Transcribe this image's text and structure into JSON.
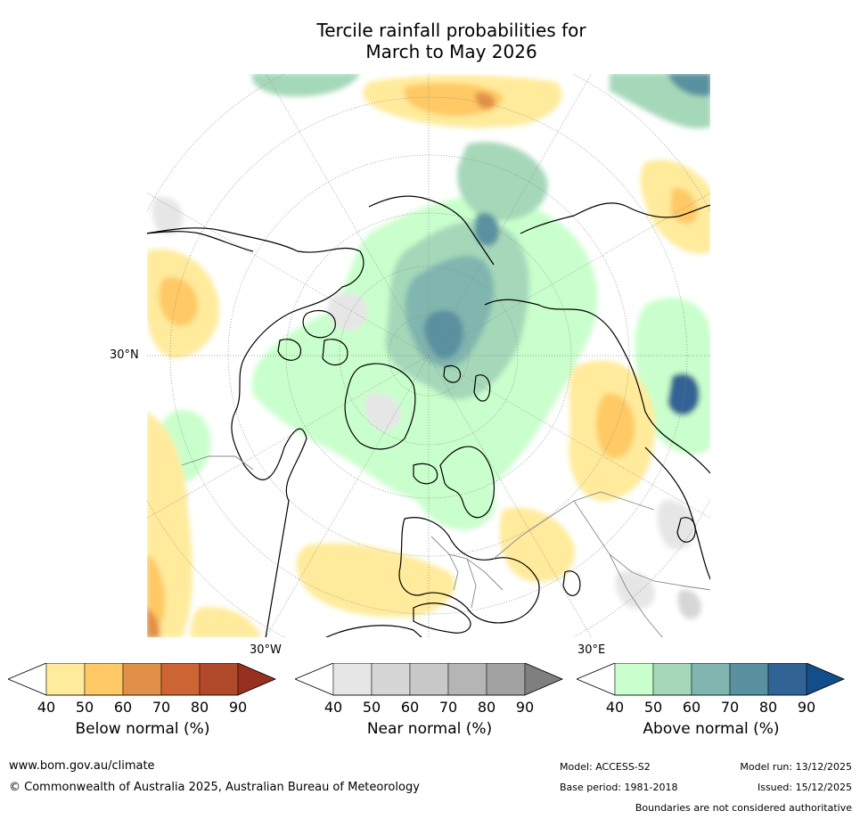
{
  "header": {
    "title_line1": "Tercile rainfall probabilities for",
    "title_line2": "March to May 2026"
  },
  "map": {
    "projection": "north-polar-stereographic",
    "lat_label": "30°N",
    "lon_label_west": "30°W",
    "lon_label_east": "30°E",
    "land_outline_color": "#000000",
    "border_color": "#888888",
    "graticule_color": "#888888"
  },
  "colorbars": [
    {
      "name": "below",
      "label": "Below normal (%)",
      "ticks": [
        "40",
        "50",
        "60",
        "70",
        "80",
        "90"
      ],
      "colors": [
        "#ffffff",
        "#ffeb9b",
        "#ffc965",
        "#e19147",
        "#cc6434",
        "#b1492b",
        "#983020"
      ]
    },
    {
      "name": "near",
      "label": "Near normal (%)",
      "ticks": [
        "40",
        "50",
        "60",
        "70",
        "80",
        "90"
      ],
      "colors": [
        "#ffffff",
        "#e6e6e6",
        "#d6d6d6",
        "#c8c8c8",
        "#b5b5b5",
        "#a2a2a2",
        "#7f7f7f"
      ]
    },
    {
      "name": "above",
      "label": "Above normal (%)",
      "ticks": [
        "40",
        "50",
        "60",
        "70",
        "80",
        "90"
      ],
      "colors": [
        "#ffffff",
        "#c9ffcc",
        "#a5d8b9",
        "#80b6af",
        "#5a91a0",
        "#316494",
        "#124e89"
      ]
    }
  ],
  "footer": {
    "website": "www.bom.gov.au/climate",
    "copyright": "© Commonwealth of Australia 2025, Australian Bureau of Meteorology",
    "model": "Model: ACCESS-S2",
    "base_period": "Base period: 1981-2018",
    "model_run": "Model run: 13/12/2025",
    "issued": "Issued: 15/12/2025",
    "disclaimer": "Boundaries are not considered authoritative"
  }
}
